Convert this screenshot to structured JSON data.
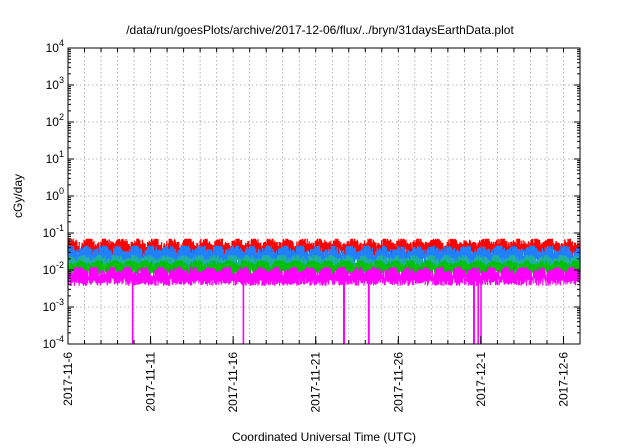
{
  "chart_data": {
    "type": "line",
    "title": "/data/run/goesPlots/archive/2017-12-06/flux/../bryn/31daysEarthData.plot",
    "xlabel": "Coordinated Universal Time (UTC)",
    "ylabel": "cGy/day",
    "x_range": [
      "2017-11-06",
      "2017-12-07"
    ],
    "y_scale": "log",
    "ylim": [
      0.0001,
      10000
    ],
    "grid": true,
    "x_ticks": [
      "2017-11-6",
      "2017-11-11",
      "2017-11-16",
      "2017-11-21",
      "2017-11-26",
      "2017-12-1",
      "2017-12-6"
    ],
    "x_tick_dates": [
      "2017-11-06",
      "2017-11-11",
      "2017-11-16",
      "2017-11-21",
      "2017-11-26",
      "2017-12-01",
      "2017-12-06"
    ],
    "y_ticks": [
      {
        "base": "10",
        "exp": "-4",
        "value": 0.0001
      },
      {
        "base": "10",
        "exp": "-3",
        "value": 0.001
      },
      {
        "base": "10",
        "exp": "-2",
        "value": 0.01
      },
      {
        "base": "10",
        "exp": "-1",
        "value": 0.1
      },
      {
        "base": "10",
        "exp": "0",
        "value": 1
      },
      {
        "base": "10",
        "exp": "1",
        "value": 10
      },
      {
        "base": "10",
        "exp": "2",
        "value": 100
      },
      {
        "base": "10",
        "exp": "3",
        "value": 1000
      },
      {
        "base": "10",
        "exp": "4",
        "value": 10000
      }
    ],
    "series": [
      {
        "color": "#ff0000",
        "typical_min": 0.02,
        "typical_max": 0.07
      },
      {
        "color": "#2080ff",
        "typical_min": 0.013,
        "typical_max": 0.045
      },
      {
        "color": "#20b0a0",
        "typical_min": 0.009,
        "typical_max": 0.025
      },
      {
        "color": "#00c000",
        "typical_min": 0.007,
        "typical_max": 0.018
      },
      {
        "color": "#ff00ff",
        "typical_min": 0.0035,
        "typical_max": 0.012,
        "dropouts": [
          "2017-11-09T22:00",
          "2017-11-16T15:00",
          "2017-11-22T17:00",
          "2017-11-24T05:00",
          "2017-11-30T14:00",
          "2017-11-30T20:00",
          "2017-12-01T00:00"
        ]
      }
    ]
  }
}
